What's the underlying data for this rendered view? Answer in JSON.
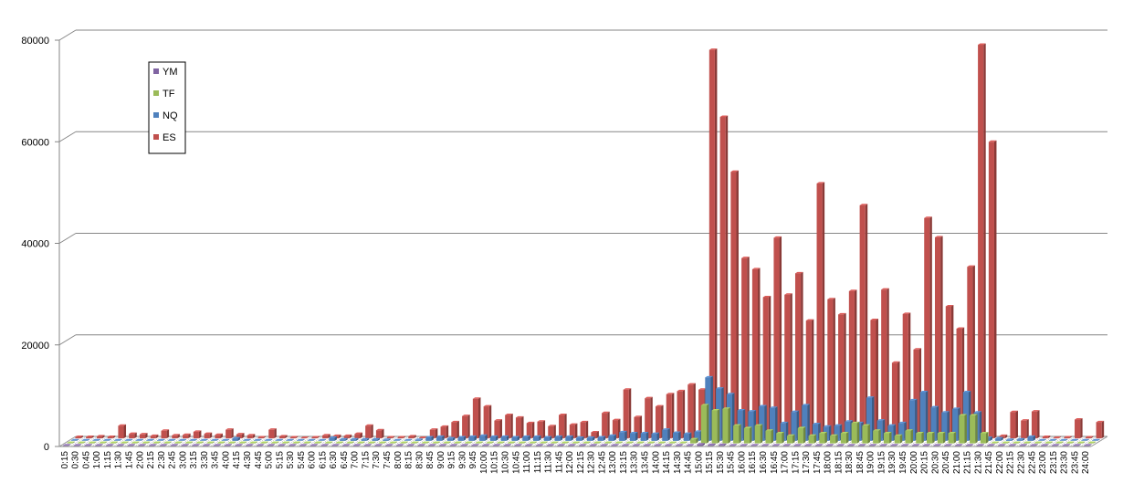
{
  "chart_data": {
    "type": "bar",
    "title": "",
    "xlabel": "",
    "ylabel": "",
    "ylim": [
      0,
      80000
    ],
    "yticks": [
      "0",
      "20000",
      "40000",
      "60000",
      "80000"
    ],
    "grid": true,
    "legend_position": "top-left",
    "categories": [
      "0:15",
      "0:30",
      "0:45",
      "1:00",
      "1:15",
      "1:30",
      "1:45",
      "2:00",
      "2:15",
      "2:30",
      "2:45",
      "3:00",
      "3:15",
      "3:30",
      "3:45",
      "4:00",
      "4:15",
      "4:30",
      "4:45",
      "5:00",
      "5:15",
      "5:30",
      "5:45",
      "6:00",
      "6:15",
      "6:30",
      "6:45",
      "7:00",
      "7:15",
      "7:30",
      "7:45",
      "8:00",
      "8:15",
      "8:30",
      "8:45",
      "9:00",
      "9:15",
      "9:30",
      "9:45",
      "10:00",
      "10:15",
      "10:30",
      "10:45",
      "11:00",
      "11:15",
      "11:30",
      "11:45",
      "12:00",
      "12:15",
      "12:30",
      "12:45",
      "13:00",
      "13:15",
      "13:30",
      "13:45",
      "14:00",
      "14:15",
      "14:30",
      "14:45",
      "15:00",
      "15:15",
      "15:30",
      "15:45",
      "16:00",
      "16:15",
      "16:30",
      "16:45",
      "17:00",
      "17:15",
      "17:30",
      "17:45",
      "18:00",
      "18:15",
      "18:30",
      "18:45",
      "19:00",
      "19:15",
      "19:30",
      "19:45",
      "20:00",
      "20:15",
      "20:30",
      "20:45",
      "21:00",
      "21:15",
      "21:30",
      "21:45",
      "22:00",
      "22:15",
      "22:30",
      "22:45",
      "23:00",
      "23:15",
      "23:30",
      "23:45",
      "24:00"
    ],
    "series": [
      {
        "name": "YM",
        "color": "#8064A2",
        "values": [
          0,
          0,
          0,
          0,
          0,
          0,
          0,
          0,
          0,
          0,
          0,
          0,
          0,
          0,
          0,
          0,
          0,
          0,
          0,
          0,
          0,
          0,
          0,
          0,
          0,
          0,
          0,
          0,
          0,
          0,
          0,
          0,
          0,
          0,
          0,
          0,
          0,
          0,
          0,
          0,
          0,
          0,
          0,
          0,
          0,
          0,
          0,
          0,
          0,
          0,
          0,
          0,
          0,
          0,
          0,
          0,
          0,
          0,
          0,
          300,
          200,
          200,
          100,
          100,
          100,
          100,
          100,
          100,
          100,
          100,
          100,
          100,
          100,
          100,
          100,
          100,
          100,
          100,
          100,
          100,
          100,
          100,
          100,
          100,
          100,
          100,
          0,
          0,
          0,
          0,
          0,
          0,
          0,
          0,
          0,
          0
        ]
      },
      {
        "name": "TF",
        "color": "#9BBB59",
        "values": [
          0,
          0,
          0,
          0,
          0,
          0,
          0,
          0,
          0,
          0,
          0,
          0,
          0,
          0,
          0,
          0,
          0,
          0,
          0,
          0,
          0,
          0,
          0,
          0,
          0,
          0,
          0,
          0,
          0,
          0,
          0,
          0,
          0,
          0,
          0,
          0,
          0,
          0,
          0,
          0,
          0,
          0,
          0,
          0,
          0,
          0,
          0,
          0,
          0,
          0,
          0,
          0,
          0,
          0,
          0,
          0,
          0,
          0,
          800,
          7500,
          6500,
          6800,
          3500,
          3000,
          3500,
          2500,
          2000,
          1500,
          3000,
          1500,
          2000,
          1500,
          2000,
          4000,
          3500,
          2500,
          2000,
          1500,
          2500,
          2000,
          2000,
          2000,
          2000,
          5500,
          5500,
          2000,
          0,
          0,
          0,
          0,
          0,
          0,
          0,
          0,
          0,
          0
        ]
      },
      {
        "name": "NQ",
        "color": "#4F81BD",
        "values": [
          100,
          100,
          100,
          100,
          100,
          100,
          100,
          100,
          100,
          100,
          100,
          100,
          100,
          100,
          100,
          500,
          100,
          100,
          100,
          100,
          100,
          100,
          100,
          100,
          600,
          300,
          300,
          300,
          300,
          200,
          100,
          100,
          200,
          700,
          800,
          500,
          700,
          800,
          1000,
          800,
          800,
          700,
          800,
          800,
          700,
          800,
          800,
          600,
          600,
          700,
          1000,
          1700,
          1500,
          1500,
          1400,
          2200,
          1600,
          1400,
          1800,
          12500,
          10300,
          9200,
          6000,
          5800,
          6800,
          6500,
          3500,
          5700,
          7000,
          3300,
          2800,
          3000,
          3800,
          3500,
          8500,
          4000,
          3000,
          3500,
          8000,
          9600,
          6600,
          5600,
          6300,
          9600,
          5600,
          600,
          500,
          200,
          300,
          800,
          0,
          0,
          0,
          0,
          0,
          0
        ]
      },
      {
        "name": "ES",
        "color": "#C0504D",
        "values": [
          300,
          300,
          400,
          300,
          2500,
          900,
          800,
          500,
          1500,
          600,
          700,
          1300,
          900,
          700,
          1700,
          800,
          600,
          200,
          1700,
          400,
          200,
          100,
          200,
          600,
          500,
          500,
          900,
          2500,
          1600,
          200,
          200,
          400,
          100,
          1700,
          2300,
          3200,
          4400,
          7800,
          6300,
          3500,
          4600,
          4100,
          3000,
          3300,
          2400,
          4600,
          2700,
          3200,
          1200,
          5000,
          3600,
          9600,
          4200,
          7900,
          6300,
          8700,
          9300,
          10600,
          9600,
          76500,
          63300,
          52500,
          35500,
          33300,
          27800,
          39500,
          28300,
          32500,
          23200,
          50200,
          27400,
          24400,
          29000,
          45900,
          23300,
          29300,
          14900,
          24500,
          17500,
          43400,
          39600,
          26000,
          21600,
          33800,
          77500,
          58400,
          500,
          5200,
          3500,
          5300,
          300,
          100,
          200,
          3700,
          200,
          3200
        ]
      }
    ]
  }
}
